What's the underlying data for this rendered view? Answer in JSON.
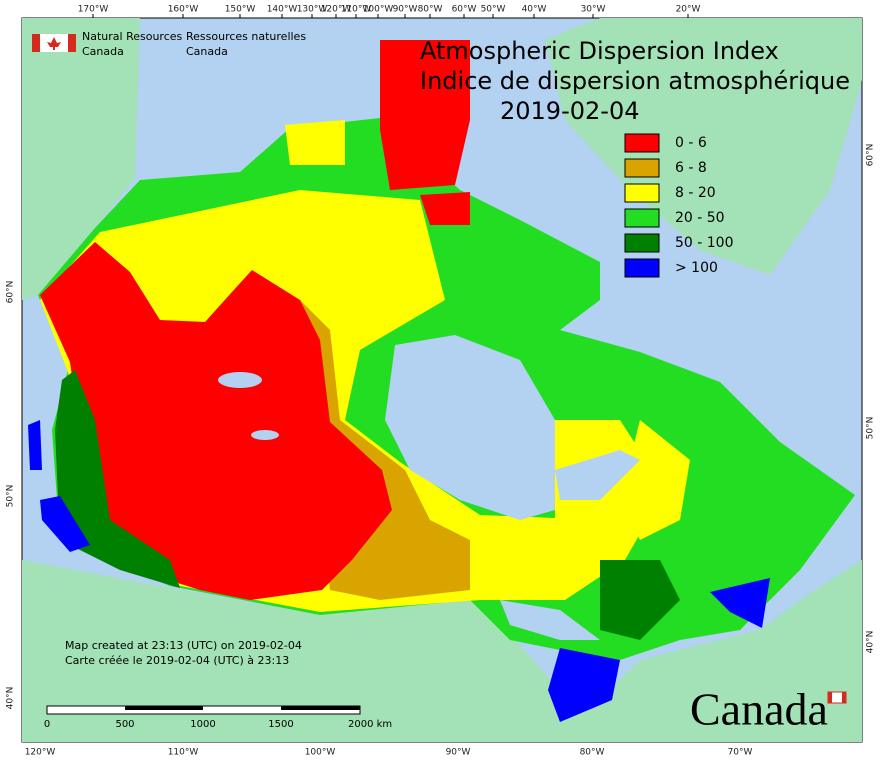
{
  "header": {
    "org_en": [
      "Natural Resources",
      "Canada"
    ],
    "org_fr": [
      "Ressources naturelles",
      "Canada"
    ]
  },
  "title": [
    "Atmospheric Dispersion Index",
    "Indice de dispersion atmosphérique",
    "2019-02-04"
  ],
  "legend": [
    {
      "label": "0 - 6",
      "color": "#ff0000"
    },
    {
      "label": "6 - 8",
      "color": "#d9a400"
    },
    {
      "label": "8 - 20",
      "color": "#ffff00"
    },
    {
      "label": "20 - 50",
      "color": "#22dd22"
    },
    {
      "label": "50 - 100",
      "color": "#008000"
    },
    {
      "label": "> 100",
      "color": "#0000ff"
    }
  ],
  "top_coords": [
    "170°W",
    "160°W",
    "150°W",
    "140°W",
    "130°W",
    "120°W",
    "110°W",
    "100°W",
    "90°W",
    "80°W",
    "60°W",
    "50°W",
    "40°W",
    "30°W",
    "20°W"
  ],
  "bottom_coords": [
    "120°W",
    "110°W",
    "100°W",
    "90°W",
    "80°W",
    "70°W"
  ],
  "left_coords": [
    "60°N",
    "50°N",
    "40°N"
  ],
  "right_coords": [
    "60°N",
    "50°N",
    "40°N"
  ],
  "notes": [
    "Map created at 23:13 (UTC) on 2019-02-04",
    "Carte créée le 2019-02-04 (UTC) à 23:13"
  ],
  "scale_labels": [
    "0",
    "500",
    "1000",
    "1500",
    "2000 km"
  ],
  "wordmark": "Canada"
}
